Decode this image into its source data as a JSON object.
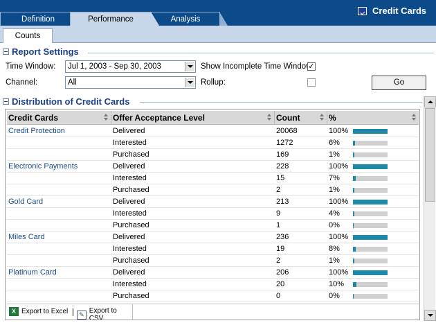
{
  "tabs": [
    {
      "label": "Definition"
    },
    {
      "label": "Performance",
      "active": true
    },
    {
      "label": "Analysis"
    }
  ],
  "app_title": "Credit Cards",
  "subtabs": [
    {
      "label": "Counts",
      "active": true
    }
  ],
  "report_settings": {
    "title": "Report Settings",
    "time_window_label": "Time Window:",
    "time_window_value": "Jul 1, 2003 - Sep 30, 2003",
    "channel_label": "Channel:",
    "channel_value": "All",
    "show_incomplete_label": "Show Incomplete Time Window:",
    "show_incomplete_checked": true,
    "rollup_label": "Rollup:",
    "rollup_checked": false,
    "go_label": "Go"
  },
  "distribution": {
    "title": "Distribution of Credit Cards",
    "columns": [
      "Credit Cards",
      "Offer Acceptance Level",
      "Count",
      "%"
    ],
    "rows": [
      {
        "card": "Credit Protection",
        "level": "Delivered",
        "count": "20068",
        "pct": "100%",
        "fraction": 1.0
      },
      {
        "card": "",
        "level": "Interested",
        "count": "1272",
        "pct": "6%",
        "fraction": 0.06
      },
      {
        "card": "",
        "level": "Purchased",
        "count": "169",
        "pct": "1%",
        "fraction": 0.01
      },
      {
        "card": "Electronic Payments",
        "level": "Delivered",
        "count": "228",
        "pct": "100%",
        "fraction": 1.0
      },
      {
        "card": "",
        "level": "Interested",
        "count": "15",
        "pct": "7%",
        "fraction": 0.07
      },
      {
        "card": "",
        "level": "Purchased",
        "count": "2",
        "pct": "1%",
        "fraction": 0.01
      },
      {
        "card": "Gold Card",
        "level": "Delivered",
        "count": "213",
        "pct": "100%",
        "fraction": 1.0
      },
      {
        "card": "",
        "level": "Interested",
        "count": "9",
        "pct": "4%",
        "fraction": 0.04
      },
      {
        "card": "",
        "level": "Purchased",
        "count": "1",
        "pct": "0%",
        "fraction": 0.0
      },
      {
        "card": "Miles Card",
        "level": "Delivered",
        "count": "236",
        "pct": "100%",
        "fraction": 1.0
      },
      {
        "card": "",
        "level": "Interested",
        "count": "19",
        "pct": "8%",
        "fraction": 0.08
      },
      {
        "card": "",
        "level": "Purchased",
        "count": "2",
        "pct": "1%",
        "fraction": 0.01
      },
      {
        "card": "Platinum Card",
        "level": "Delivered",
        "count": "206",
        "pct": "100%",
        "fraction": 1.0
      },
      {
        "card": "",
        "level": "Interested",
        "count": "20",
        "pct": "10%",
        "fraction": 0.1
      },
      {
        "card": "",
        "level": "Purchased",
        "count": "0",
        "pct": "0%",
        "fraction": 0.0
      }
    ]
  },
  "export": {
    "excel_label": "Export to Excel",
    "csv_label": "Export to CSV"
  },
  "colors": {
    "header_blue": "#0c4a8a",
    "link_blue": "#1a4a8a",
    "bar_fill": "#1c8aa6"
  }
}
